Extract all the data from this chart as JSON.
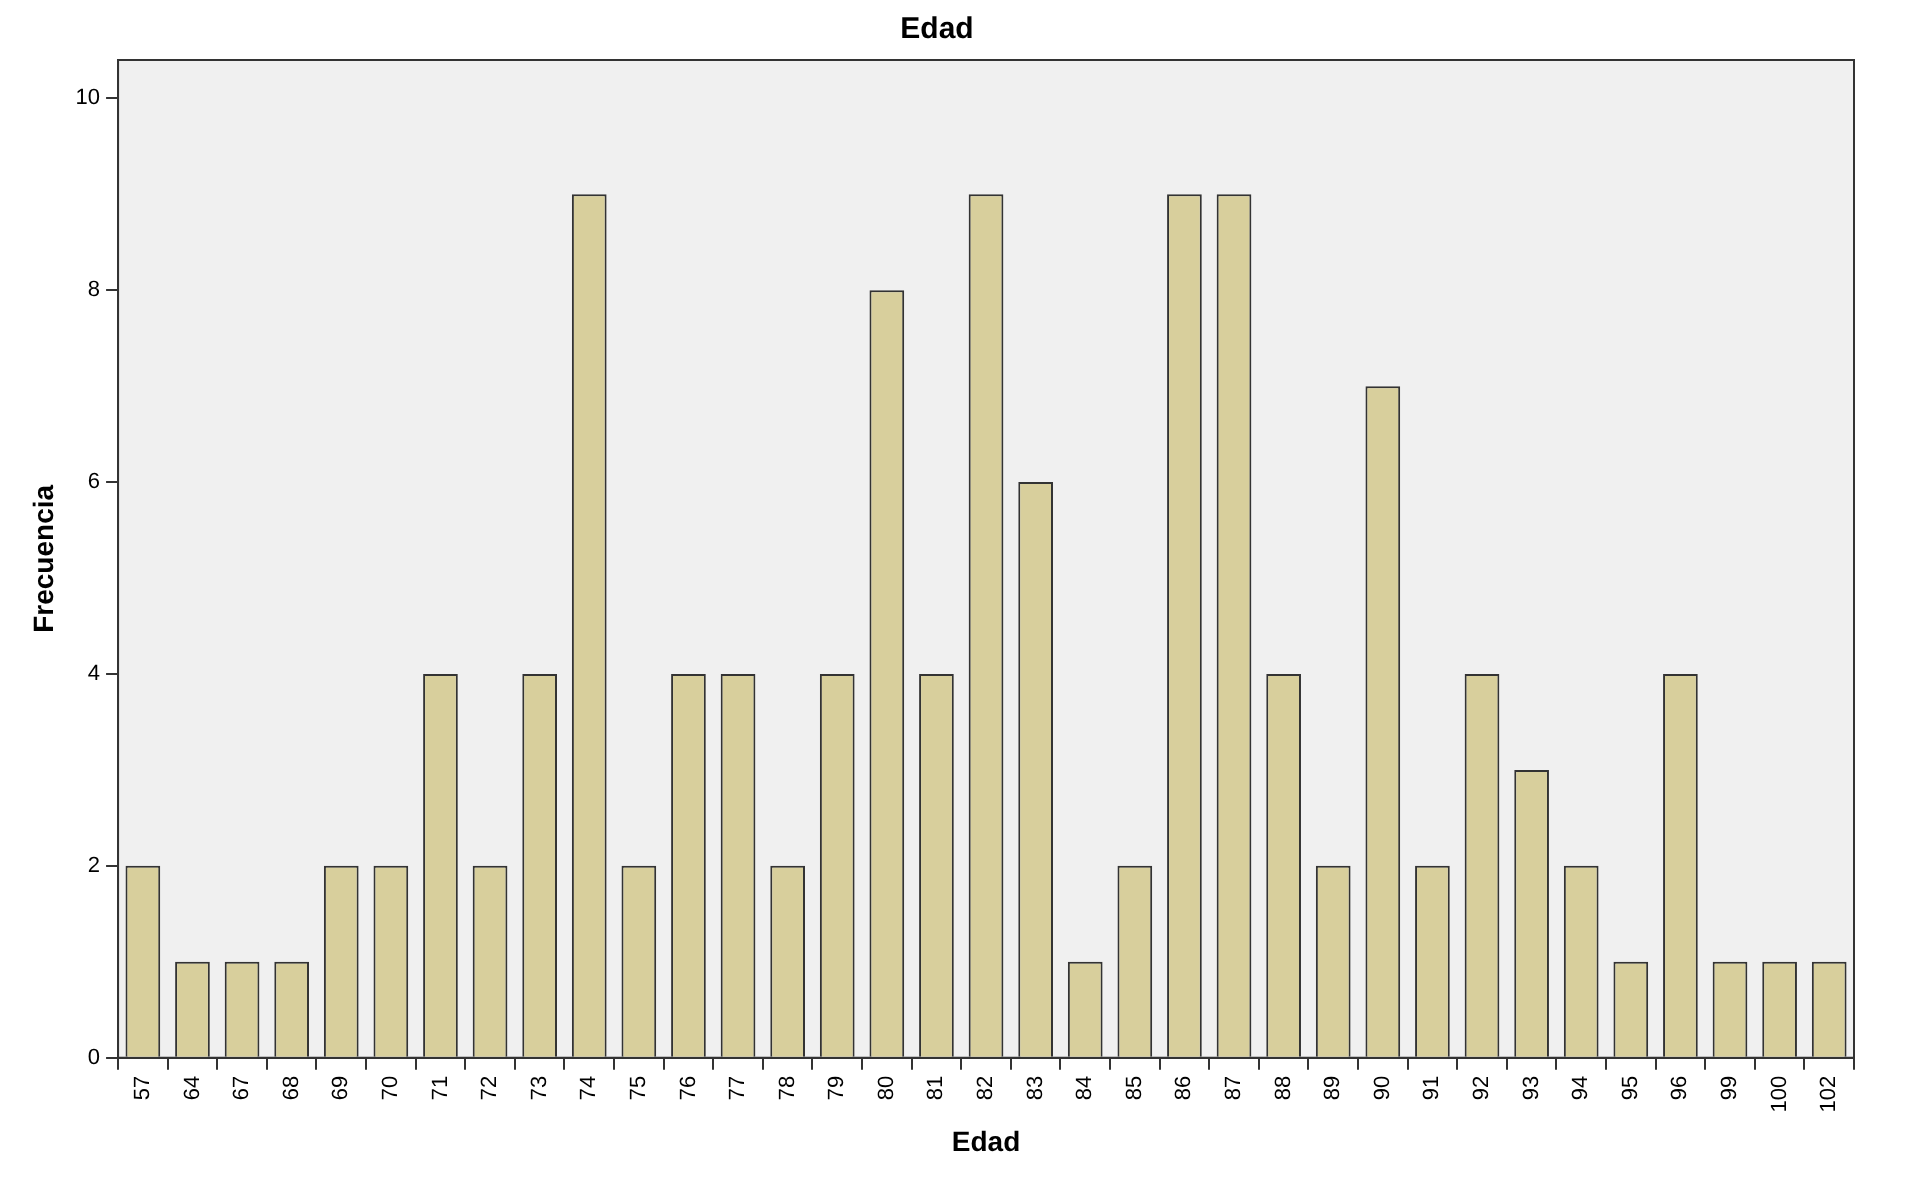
{
  "chart_data": {
    "type": "bar",
    "title": "Edad",
    "xlabel": "Edad",
    "ylabel": "Frecuencia",
    "categories": [
      "57",
      "64",
      "67",
      "68",
      "69",
      "70",
      "71",
      "72",
      "73",
      "74",
      "75",
      "76",
      "77",
      "78",
      "79",
      "80",
      "81",
      "82",
      "83",
      "84",
      "85",
      "86",
      "87",
      "88",
      "89",
      "90",
      "91",
      "92",
      "93",
      "94",
      "95",
      "96",
      "99",
      "100",
      "102"
    ],
    "values": [
      2,
      1,
      1,
      1,
      2,
      2,
      4,
      2,
      4,
      9,
      2,
      4,
      4,
      2,
      4,
      8,
      4,
      9,
      6,
      1,
      2,
      9,
      9,
      4,
      2,
      7,
      2,
      4,
      3,
      2,
      1,
      4,
      1,
      1,
      1
    ],
    "color": "#d8cf9c",
    "ylim": [
      0,
      10.4
    ],
    "yticks": [
      0,
      2,
      4,
      6,
      8,
      10
    ],
    "grid": false,
    "legend": false
  }
}
